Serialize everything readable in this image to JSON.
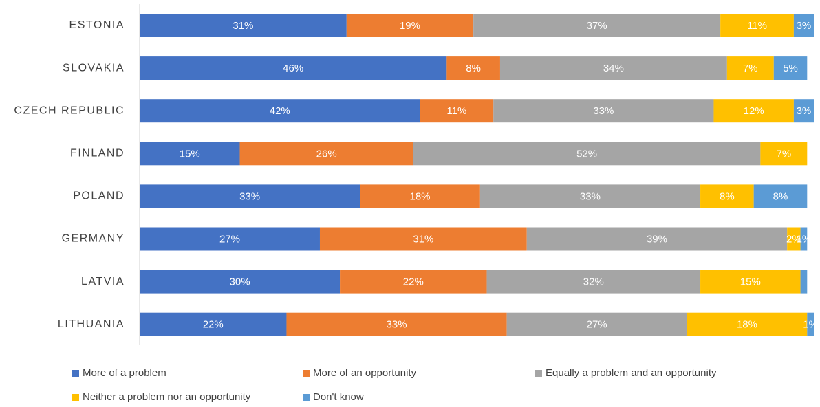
{
  "chart_data": {
    "type": "bar",
    "orientation": "horizontal",
    "stacked": true,
    "categories": [
      "ESTONIA",
      "SLOVAKIA",
      "CZECH REPUBLIC",
      "FINLAND",
      "POLAND",
      "GERMANY",
      "LATVIA",
      "LITHUANIA"
    ],
    "xlim": [
      0,
      101
    ],
    "series": [
      {
        "name": "More of a problem",
        "color": "#4472c4",
        "values": [
          31,
          46,
          42,
          15,
          33,
          27,
          30,
          22
        ],
        "value_labels": [
          "31%",
          "46%",
          "42%",
          "15%",
          "33%",
          "27%",
          "30%",
          "22%"
        ]
      },
      {
        "name": "More of an opportunity",
        "color": "#ed7d31",
        "values": [
          19,
          8,
          11,
          26,
          18,
          31,
          22,
          33
        ],
        "value_labels": [
          "19%",
          "8%",
          "11%",
          "26%",
          "18%",
          "31%",
          "22%",
          "33%"
        ]
      },
      {
        "name": "Equally a problem and an opportunity",
        "color": "#a5a5a5",
        "values": [
          37,
          34,
          33,
          52,
          33,
          39,
          32,
          27
        ],
        "value_labels": [
          "37%",
          "34%",
          "33%",
          "52%",
          "33%",
          "39%",
          "32%",
          "27%"
        ]
      },
      {
        "name": "Neither a problem nor an opportunity",
        "color": "#ffc000",
        "values": [
          11,
          7,
          12,
          7,
          8,
          2,
          15,
          18
        ],
        "value_labels": [
          "11%",
          "7%",
          "12%",
          "7%",
          "8%",
          "2%",
          "15%",
          "18%"
        ]
      },
      {
        "name": "Don't know",
        "color": "#5b9bd5",
        "values": [
          3,
          5,
          3,
          0,
          8,
          1,
          1,
          1
        ],
        "value_labels": [
          "3%",
          "5%",
          "3%",
          null,
          "8%",
          "1%",
          null,
          "1%"
        ]
      }
    ]
  }
}
